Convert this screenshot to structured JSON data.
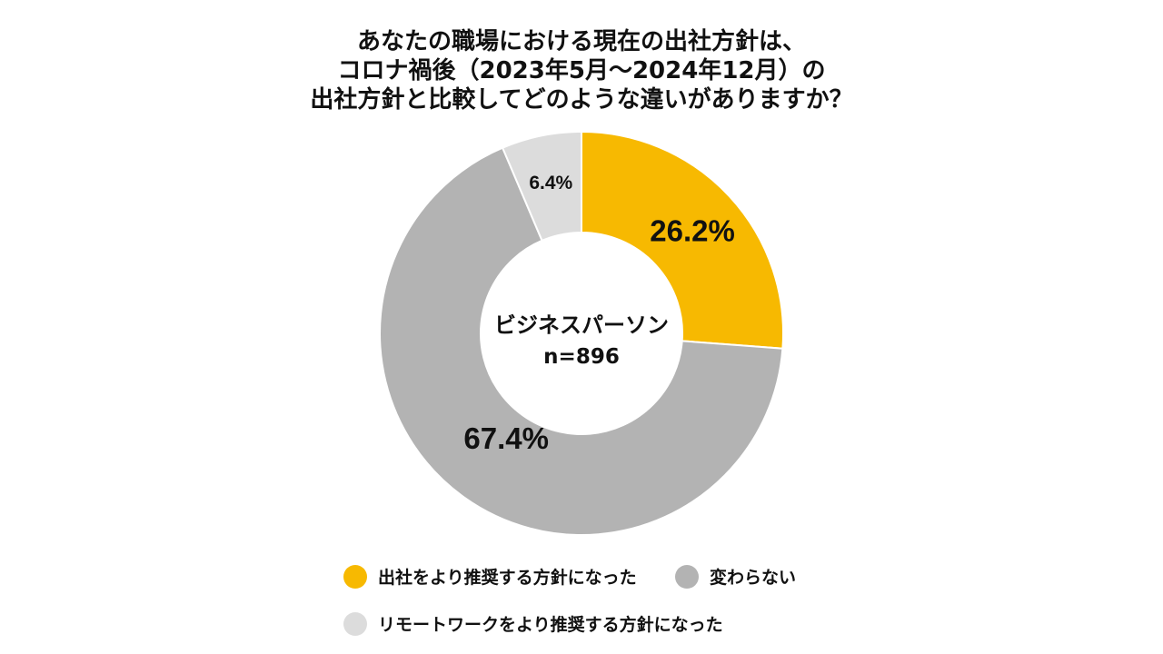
{
  "title_lines": [
    "あなたの職場における現在の出社方針は、",
    "コロナ禍後（2023年5月～2024年12月）の",
    "出社方針と比較してどのような違いがありますか？"
  ],
  "center_label": {
    "line1": "ビジネスパーソン",
    "line2": "n=896"
  },
  "colors": {
    "series_1": "#F7B901",
    "series_2": "#B3B3B3",
    "series_3": "#DCDCDC"
  },
  "chart_data": {
    "type": "pie",
    "variant": "donut",
    "title": "あなたの職場における現在の出社方針は、コロナ禍後（2023年5月～2024年12月）の出社方針と比較してどのような違いがありますか？",
    "slices": [
      {
        "label": "出社をより推奨する方針になった",
        "value": 26.2,
        "value_label": "26.2%",
        "color": "#F7B901"
      },
      {
        "label": "変わらない",
        "value": 67.4,
        "value_label": "67.4%",
        "color": "#B3B3B3"
      },
      {
        "label": "リモートワークをより推奨する方針になった",
        "value": 6.4,
        "value_label": "6.4%",
        "color": "#DCDCDC"
      }
    ],
    "start_angle": "12 o'clock",
    "direction": "clockwise",
    "legend_position": "bottom"
  }
}
